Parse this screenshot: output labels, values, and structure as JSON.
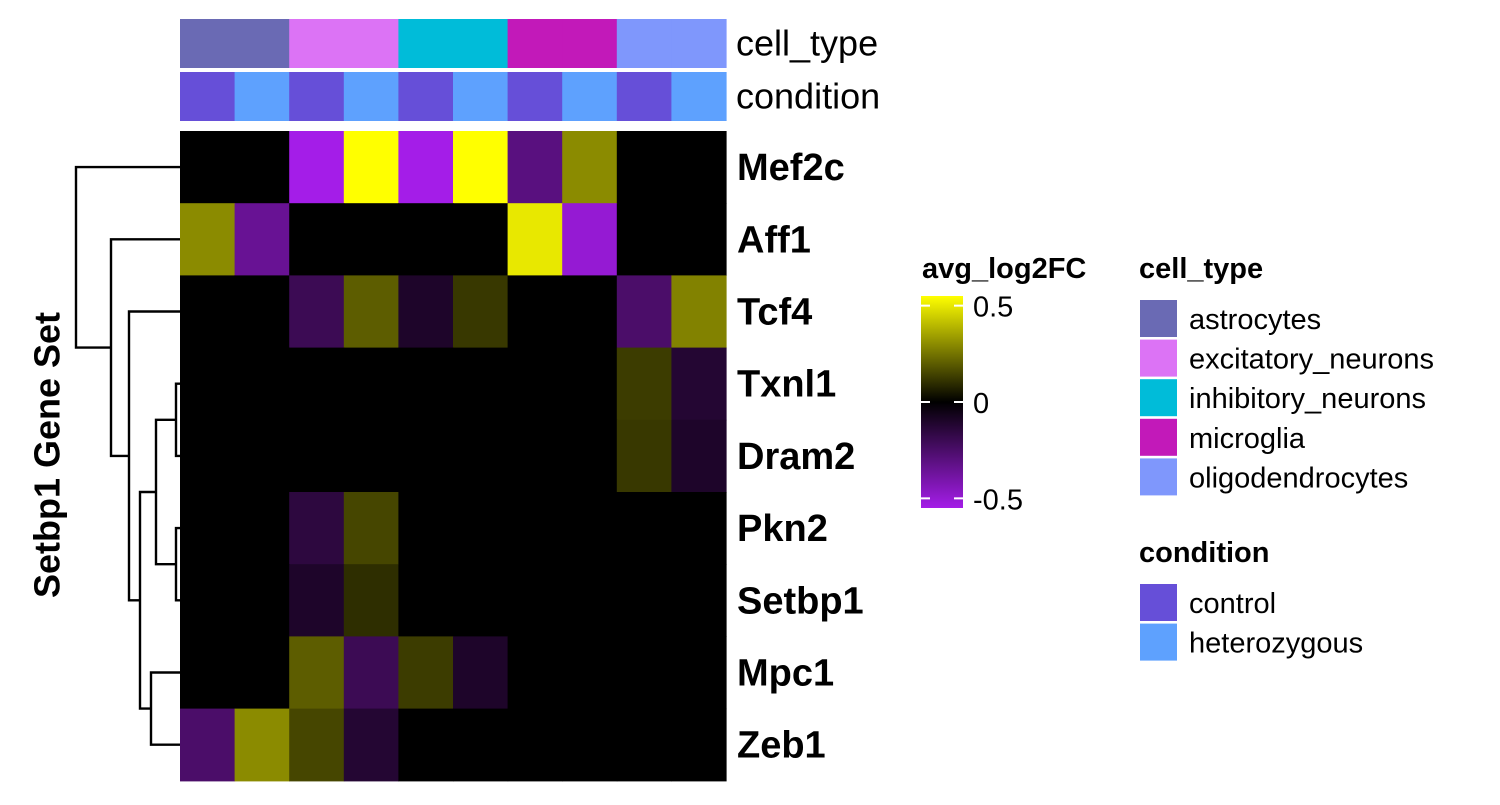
{
  "chart_data": {
    "type": "heatmap",
    "ylabel": "Setbp1 Gene Set",
    "rows": [
      "Mef2c",
      "Aff1",
      "Tcf4",
      "Txnl1",
      "Dram2",
      "Pkn2",
      "Setbp1",
      "Mpc1",
      "Zeb1"
    ],
    "columns": [
      {
        "cell_type": "astrocytes",
        "condition": "control"
      },
      {
        "cell_type": "astrocytes",
        "condition": "heterozygous"
      },
      {
        "cell_type": "excitatory_neurons",
        "condition": "control"
      },
      {
        "cell_type": "excitatory_neurons",
        "condition": "heterozygous"
      },
      {
        "cell_type": "inhibitory_neurons",
        "condition": "control"
      },
      {
        "cell_type": "inhibitory_neurons",
        "condition": "heterozygous"
      },
      {
        "cell_type": "microglia",
        "condition": "control"
      },
      {
        "cell_type": "microglia",
        "condition": "heterozygous"
      },
      {
        "cell_type": "oligodendrocytes",
        "condition": "control"
      },
      {
        "cell_type": "oligodendrocytes",
        "condition": "heterozygous"
      }
    ],
    "values": [
      [
        0,
        0,
        -0.55,
        0.6,
        -0.55,
        0.55,
        -0.3,
        0.3,
        0,
        0
      ],
      [
        0.3,
        -0.35,
        0,
        0,
        0,
        0,
        0.5,
        -0.5,
        0,
        0
      ],
      [
        0,
        0,
        -0.2,
        0.2,
        -0.1,
        0.12,
        0,
        0,
        -0.25,
        0.28
      ],
      [
        0,
        0,
        0,
        0,
        0,
        0,
        0,
        0,
        0.13,
        -0.12
      ],
      [
        0,
        0,
        0,
        0,
        0,
        0,
        0,
        0,
        0.12,
        -0.1
      ],
      [
        0,
        0,
        -0.15,
        0.15,
        0,
        0,
        0,
        0,
        0,
        0
      ],
      [
        0,
        0,
        -0.1,
        0.1,
        0,
        0,
        0,
        0,
        0,
        0
      ],
      [
        0,
        0,
        0.2,
        -0.2,
        0.13,
        -0.1,
        0,
        0,
        0,
        0
      ],
      [
        -0.25,
        0.3,
        0.15,
        -0.12,
        0,
        0,
        0,
        0,
        0,
        0
      ]
    ],
    "color_scale": {
      "title": "avg_log2FC",
      "ticks": [
        0.5,
        0,
        -0.5
      ],
      "tick_labels": [
        "0.5",
        "0",
        "-0.5"
      ],
      "range": [
        -0.55,
        0.55
      ],
      "low_color": "#a41de8",
      "mid_color": "#000000",
      "high_color": "#ffff00"
    },
    "annotations": [
      {
        "name": "cell_type",
        "legend_title": "cell_type",
        "levels": [
          "astrocytes",
          "excitatory_neurons",
          "inhibitory_neurons",
          "microglia",
          "oligodendrocytes"
        ],
        "colors": [
          "#6a6ab4",
          "#dc73f5",
          "#00bcd9",
          "#c219b9",
          "#7f97fc"
        ]
      },
      {
        "name": "condition",
        "legend_title": "condition",
        "levels": [
          "control",
          "heterozygous"
        ],
        "colors": [
          "#664fd8",
          "#5ea1fe"
        ]
      }
    ],
    "row_dendrogram_order": [
      "Mef2c",
      "Aff1",
      "Tcf4",
      "Txnl1",
      "Dram2",
      "Pkn2",
      "Setbp1",
      "Mpc1",
      "Zeb1"
    ],
    "legend_position": "right"
  }
}
